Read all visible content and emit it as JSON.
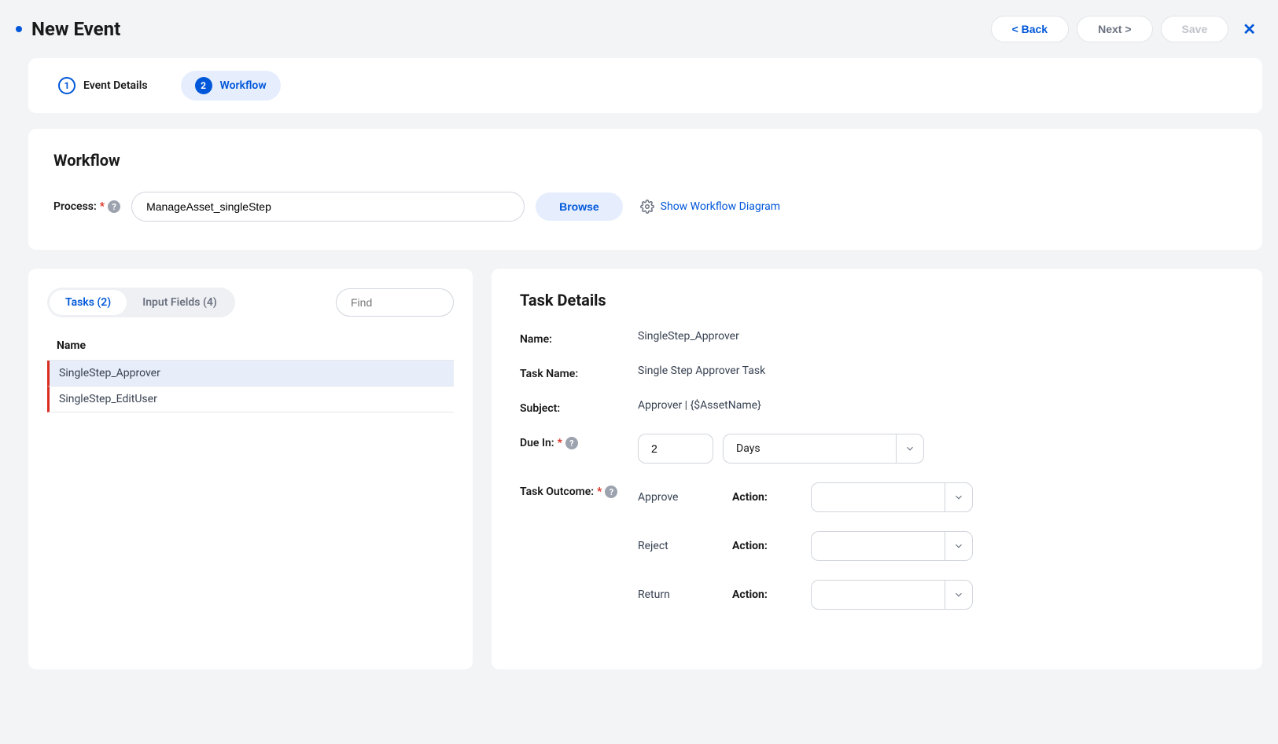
{
  "header": {
    "title": "New Event",
    "back_label": "< Back",
    "next_label": "Next >",
    "save_label": "Save"
  },
  "wizard": {
    "step1_label": "Event Details",
    "step2_label": "Workflow"
  },
  "workflow_section": {
    "title": "Workflow",
    "process_label": "Process:",
    "process_value": "ManageAsset_singleStep",
    "browse_label": "Browse",
    "show_diagram_label": "Show Workflow Diagram"
  },
  "tasks_panel": {
    "tasks_tab_label": "Tasks (2)",
    "inputs_tab_label": "Input Fields (4)",
    "find_placeholder": "Find",
    "name_header": "Name",
    "rows": [
      {
        "name": "SingleStep_Approver",
        "selected": true
      },
      {
        "name": "SingleStep_EditUser",
        "selected": false
      }
    ]
  },
  "task_details": {
    "title": "Task Details",
    "name_label": "Name:",
    "name_value": "SingleStep_Approver",
    "task_name_label": "Task Name:",
    "task_name_value": "Single Step Approver Task",
    "subject_label": "Subject:",
    "subject_value": "Approver | {$AssetName}",
    "due_label": "Due In:",
    "due_value": "2",
    "due_unit": "Days",
    "outcome_label": "Task Outcome:",
    "action_label": "Action:",
    "outcomes": [
      {
        "name": "Approve",
        "action": ""
      },
      {
        "name": "Reject",
        "action": ""
      },
      {
        "name": "Return",
        "action": ""
      }
    ]
  }
}
